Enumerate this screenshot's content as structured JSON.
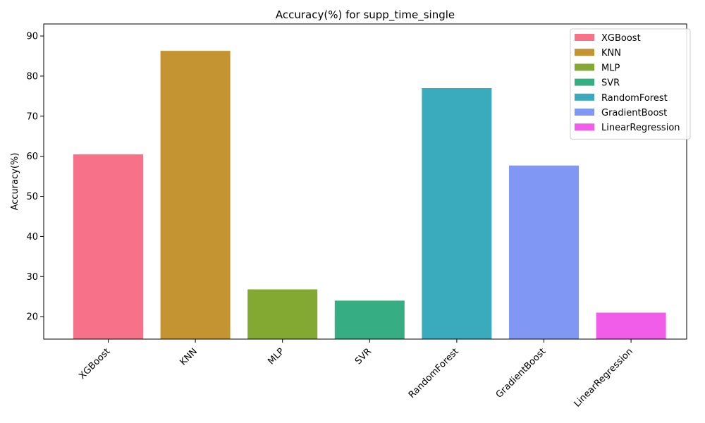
{
  "chart_data": {
    "type": "bar",
    "title": "Accuracy(%) for supp_time_single",
    "xlabel": "",
    "ylabel": "Accuracy(%)",
    "categories": [
      "XGBoost",
      "KNN",
      "MLP",
      "SVR",
      "RandomForest",
      "GradientBoost",
      "LinearRegression"
    ],
    "values": [
      60.5,
      86.3,
      26.8,
      24.0,
      77.0,
      57.7,
      21.0
    ],
    "colors": [
      "#f77189",
      "#c59432",
      "#83a932",
      "#36ad83",
      "#3aaabd",
      "#8197f4",
      "#f15de9"
    ],
    "ylim": [
      14.4,
      93.0
    ],
    "yticks": [
      20,
      30,
      40,
      50,
      60,
      70,
      80,
      90
    ],
    "legend": {
      "position": "top-right",
      "entries": [
        "XGBoost",
        "KNN",
        "MLP",
        "SVR",
        "RandomForest",
        "GradientBoost",
        "LinearRegression"
      ]
    },
    "grid": false
  }
}
